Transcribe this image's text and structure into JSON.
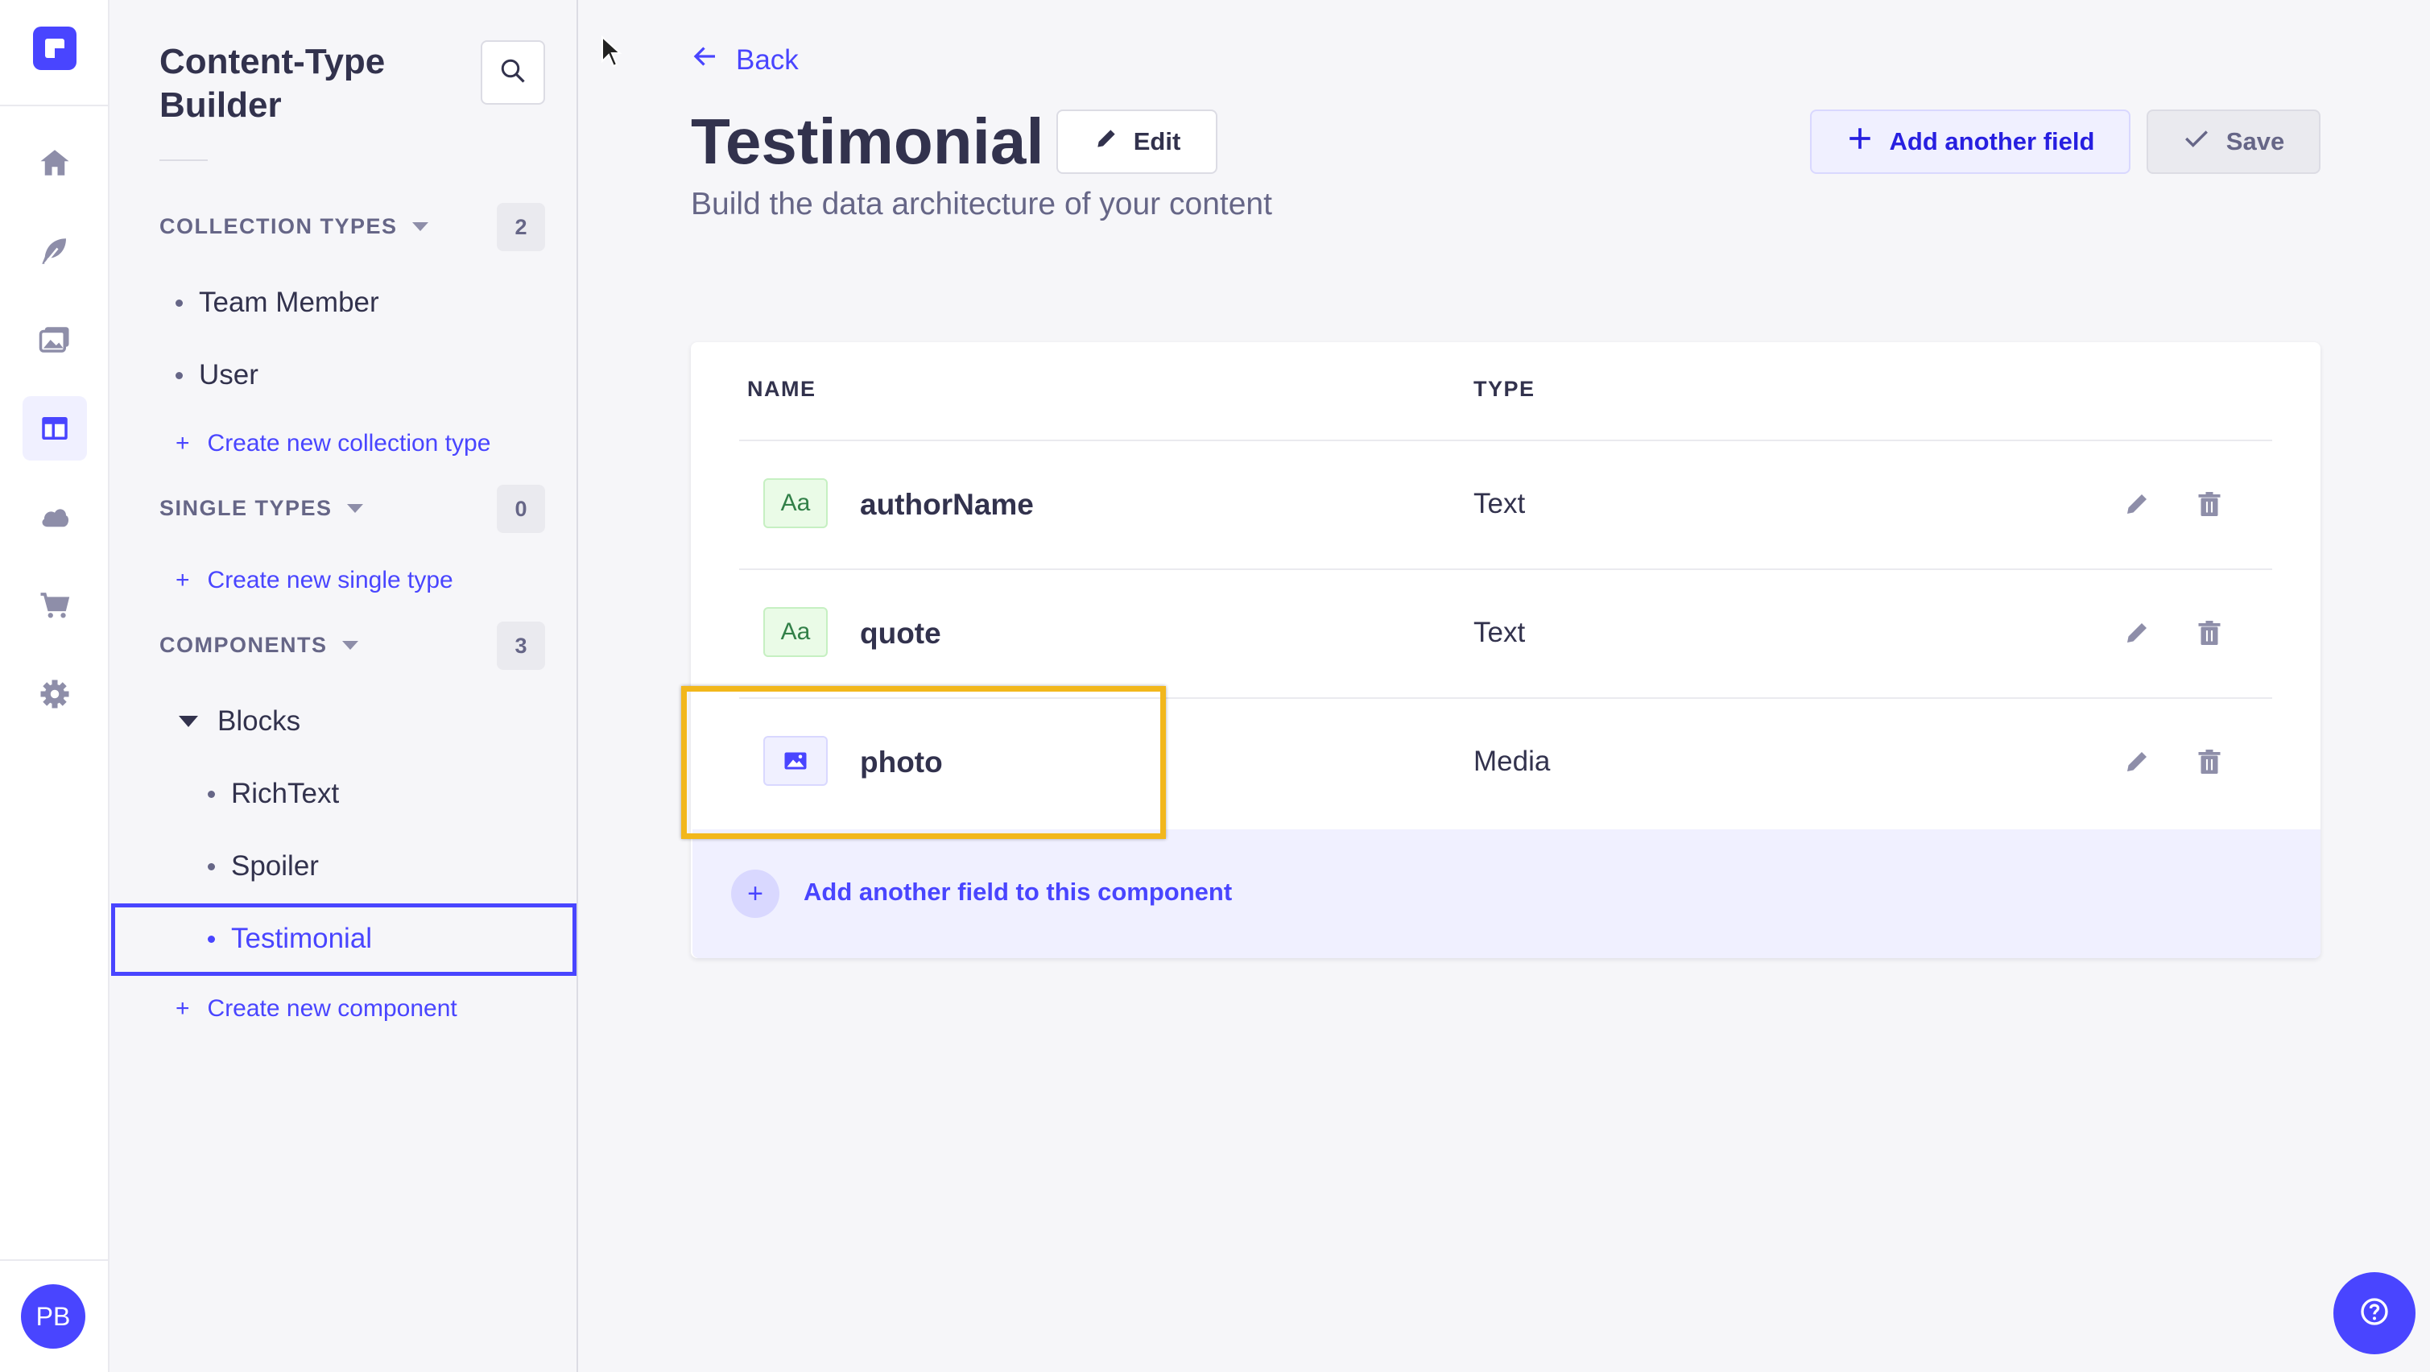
{
  "subnav": {
    "title": "Content-Type Builder",
    "sections": [
      {
        "label": "COLLECTION TYPES",
        "count": "2",
        "items": [
          "Team Member",
          "User"
        ],
        "create_label": "Create new collection type"
      },
      {
        "label": "SINGLE TYPES",
        "count": "0",
        "items": [],
        "create_label": "Create new single type"
      },
      {
        "label": "COMPONENTS",
        "count": "3",
        "category": "Blocks",
        "items": [
          "RichText",
          "Spoiler",
          "Testimonial"
        ],
        "create_label": "Create new component"
      }
    ]
  },
  "header": {
    "back_label": "Back",
    "title": "Testimonial",
    "edit_label": "Edit",
    "subtitle": "Build the data architecture of your content",
    "add_field_label": "Add another field",
    "save_label": "Save"
  },
  "table": {
    "columns": [
      "NAME",
      "TYPE"
    ],
    "rows": [
      {
        "name": "authorName",
        "type": "Text",
        "icon": "text-type-icon",
        "icon_text": "Aa"
      },
      {
        "name": "quote",
        "type": "Text",
        "icon": "text-type-icon",
        "icon_text": "Aa"
      },
      {
        "name": "photo",
        "type": "Media",
        "icon": "media-type-icon"
      }
    ],
    "add_field_label": "Add another field to this component"
  },
  "user": {
    "initials": "PB"
  },
  "colors": {
    "primary": "#4945ff",
    "highlight": "#f2b71c",
    "text": "#32324d",
    "muted": "#666687"
  }
}
